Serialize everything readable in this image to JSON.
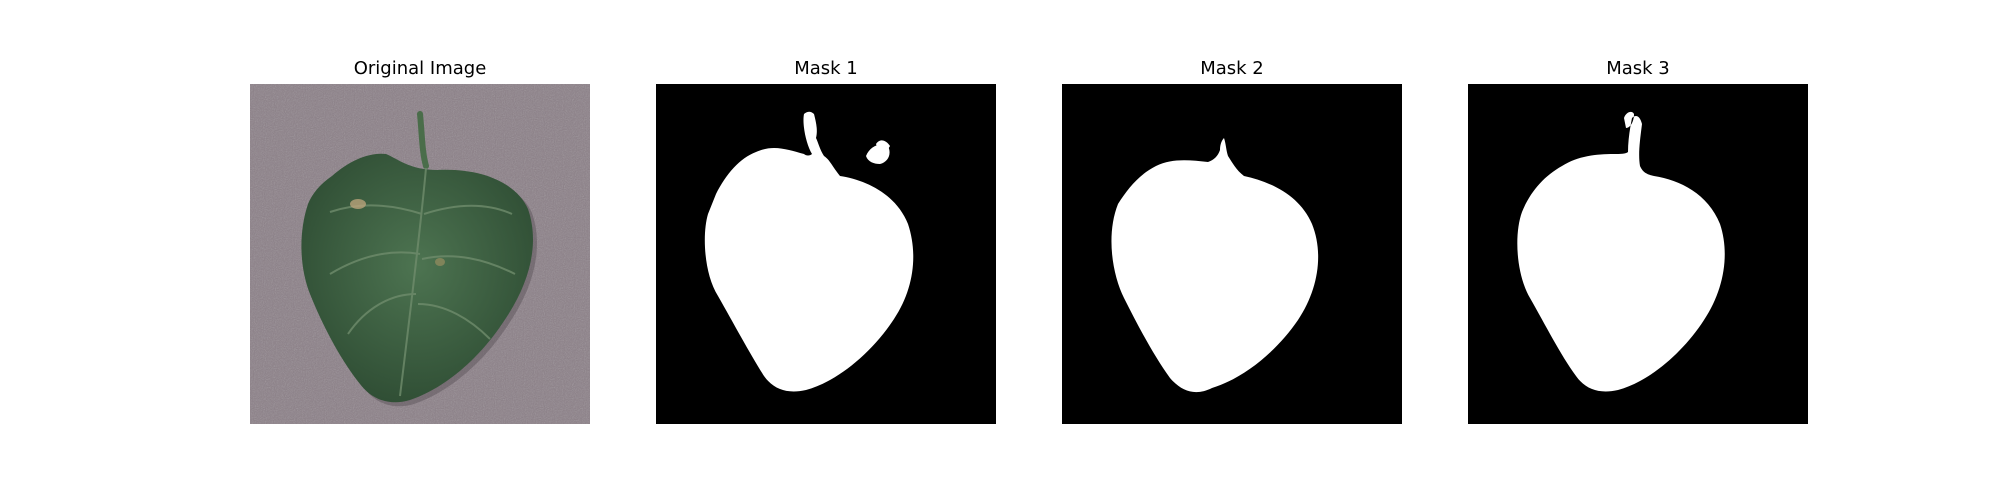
{
  "figure": {
    "panels": [
      {
        "title": "Original Image",
        "kind": "photo"
      },
      {
        "title": "Mask 1",
        "kind": "mask"
      },
      {
        "title": "Mask 2",
        "kind": "mask"
      },
      {
        "title": "Mask 3",
        "kind": "mask"
      }
    ]
  },
  "colors": {
    "background_photo": "#8c8088",
    "leaf": "#3f6444",
    "leaf_dark": "#2f4f36",
    "vein": "#6d8a6a",
    "mask_bg": "#000000",
    "mask_fg": "#ffffff"
  }
}
